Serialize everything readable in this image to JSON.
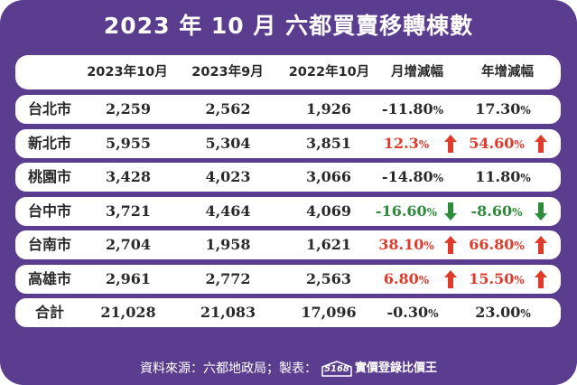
{
  "title": "2023 年 10 月 六都買賣移轉棟數",
  "colors": {
    "frame": "#5b3d8f",
    "row_bg": "#ffffff",
    "text": "#2a2a2a",
    "increase": "#e03a2a",
    "decrease": "#2e8b3a"
  },
  "footer": {
    "source_text": "資料來源：六都地政局；製表：",
    "logo_number": "5168",
    "brand_text": "實價登錄比價王"
  },
  "chart_data": {
    "type": "table",
    "columns": [
      "",
      "2023年10月",
      "2023年9月",
      "2022年10月",
      "月增減幅",
      "年增減幅"
    ],
    "rows": [
      {
        "city": "台北市",
        "oct_2023": "2,259",
        "sep_2023": "2,562",
        "oct_2022": "1,926",
        "mom": "-11.80",
        "mom_trend": "",
        "yoy": "17.30",
        "yoy_trend": ""
      },
      {
        "city": "新北市",
        "oct_2023": "5,955",
        "sep_2023": "5,304",
        "oct_2022": "3,851",
        "mom": "12.3",
        "mom_trend": "up",
        "yoy": "54.60",
        "yoy_trend": "up"
      },
      {
        "city": "桃園市",
        "oct_2023": "3,428",
        "sep_2023": "4,023",
        "oct_2022": "3,066",
        "mom": "-14.80",
        "mom_trend": "",
        "yoy": "11.80",
        "yoy_trend": ""
      },
      {
        "city": "台中市",
        "oct_2023": "3,721",
        "sep_2023": "4,464",
        "oct_2022": "4,069",
        "mom": "-16.60",
        "mom_trend": "down",
        "yoy": "-8.60",
        "yoy_trend": "down"
      },
      {
        "city": "台南市",
        "oct_2023": "2,704",
        "sep_2023": "1,958",
        "oct_2022": "1,621",
        "mom": "38.10",
        "mom_trend": "up",
        "yoy": "66.80",
        "yoy_trend": "up"
      },
      {
        "city": "高雄市",
        "oct_2023": "2,961",
        "sep_2023": "2,772",
        "oct_2022": "2,563",
        "mom": "6.80",
        "mom_trend": "up",
        "yoy": "15.50",
        "yoy_trend": "up"
      },
      {
        "city": "合計",
        "oct_2023": "21,028",
        "sep_2023": "21,083",
        "oct_2022": "17,096",
        "mom": "-0.30",
        "mom_trend": "",
        "yoy": "23.00",
        "yoy_trend": ""
      }
    ],
    "percent_symbol": "%"
  }
}
